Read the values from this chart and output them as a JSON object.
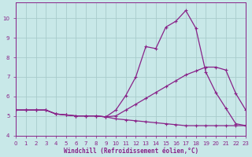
{
  "xlabel": "Windchill (Refroidissement éolien,°C)",
  "bg_color": "#c8e8e8",
  "grid_color": "#a8cccc",
  "line_color": "#882288",
  "xlim": [
    0,
    23
  ],
  "ylim": [
    4.0,
    10.8
  ],
  "xticks": [
    0,
    1,
    2,
    3,
    4,
    5,
    6,
    7,
    8,
    9,
    10,
    11,
    12,
    13,
    14,
    15,
    16,
    17,
    18,
    19,
    20,
    21,
    22,
    23
  ],
  "yticks": [
    4,
    5,
    6,
    7,
    8,
    9,
    10
  ],
  "lineA_x": [
    0,
    1,
    2,
    3,
    4,
    5,
    6,
    7,
    8,
    9,
    10,
    11,
    12,
    13,
    14,
    15,
    16,
    17,
    18,
    19,
    20,
    21,
    22,
    23
  ],
  "lineA_y": [
    5.3,
    5.3,
    5.3,
    5.3,
    5.1,
    5.05,
    5.0,
    5.0,
    5.0,
    4.95,
    5.3,
    6.05,
    7.0,
    8.55,
    8.45,
    9.55,
    9.85,
    10.4,
    9.5,
    7.25,
    6.2,
    5.4,
    4.6,
    4.5
  ],
  "lineB_x": [
    0,
    1,
    2,
    3,
    4,
    5,
    6,
    7,
    8,
    9,
    10,
    11,
    12,
    13,
    14,
    15,
    16,
    17,
    18,
    19,
    20,
    21,
    22,
    23
  ],
  "lineB_y": [
    5.3,
    5.3,
    5.3,
    5.3,
    5.1,
    5.05,
    5.0,
    5.0,
    5.0,
    4.95,
    5.0,
    5.3,
    5.6,
    5.9,
    6.2,
    6.5,
    6.8,
    7.1,
    7.3,
    7.5,
    7.5,
    7.35,
    6.15,
    5.3
  ],
  "lineC_x": [
    0,
    1,
    2,
    3,
    4,
    5,
    6,
    7,
    8,
    9,
    10,
    11,
    12,
    13,
    14,
    15,
    16,
    17,
    18,
    19,
    20,
    21,
    22,
    23
  ],
  "lineC_y": [
    5.3,
    5.3,
    5.3,
    5.3,
    5.1,
    5.05,
    5.0,
    5.0,
    5.0,
    4.95,
    4.85,
    4.8,
    4.75,
    4.7,
    4.65,
    4.6,
    4.55,
    4.5,
    4.5,
    4.5,
    4.5,
    4.5,
    4.5,
    4.5
  ]
}
